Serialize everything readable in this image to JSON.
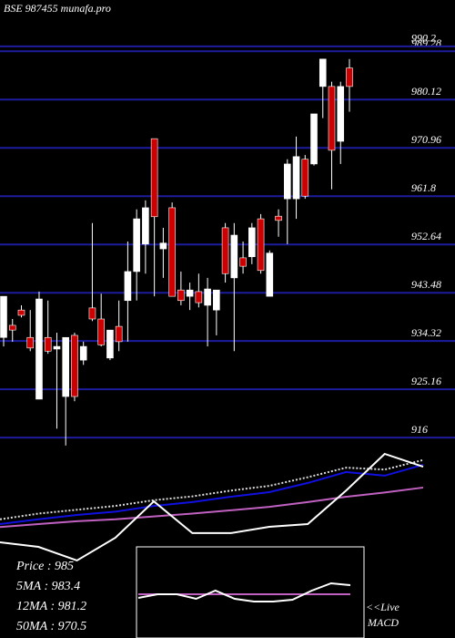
{
  "chart_data": {
    "type": "candlestick",
    "title": "BSE 987455 munafa.pro",
    "ylim": [
      914.3,
      999
    ],
    "yticks": [
      916,
      925.16,
      934.32,
      943.48,
      952.64,
      961.8,
      970.96,
      980.12,
      989.28,
      990.2
    ],
    "grid": true,
    "up_color": "#ffffff",
    "down_color": "#cc0000",
    "grid_color": "#1c1c9c",
    "open": [
      935.0,
      937.3,
      940.2,
      935.0,
      923.3,
      935.0,
      932.8,
      923.8,
      935.4,
      930.7,
      940.6,
      938.5,
      931.1,
      937.1,
      942.0,
      947.5,
      952.7,
      972.7,
      951.8,
      959.6,
      944.0,
      942.8,
      943.7,
      941.1,
      940.2,
      955.8,
      946.3,
      950.1,
      950.3,
      957.5,
      942.8,
      958.0,
      961.3,
      961.3,
      968.8,
      967.9,
      982.6,
      982.6,
      972.2,
      986.1
    ],
    "high": [
      942.8,
      938.5,
      941.1,
      940.2,
      943.7,
      942.0,
      935.9,
      935.0,
      935.9,
      934.2,
      956.7,
      943.3,
      936.4,
      942.0,
      953.2,
      959.3,
      961.0,
      972.7,
      955.8,
      960.6,
      947.5,
      945.4,
      947.1,
      946.3,
      944.0,
      956.7,
      956.7,
      953.2,
      956.7,
      958.4,
      951.5,
      959.3,
      968.8,
      973.1,
      969.6,
      977.4,
      987.8,
      983.5,
      983.5,
      987.8
    ],
    "low": [
      933.3,
      934.2,
      938.8,
      932.4,
      923.3,
      931.9,
      917.7,
      914.5,
      922.9,
      929.8,
      938.1,
      933.3,
      930.7,
      932.4,
      934.2,
      942.0,
      947.1,
      942.8,
      946.3,
      942.8,
      941.1,
      940.2,
      940.7,
      933.3,
      935.4,
      945.4,
      932.4,
      947.1,
      948.9,
      947.1,
      942.8,
      954.1,
      952.7,
      957.5,
      961.3,
      967.6,
      976.6,
      963.1,
      967.9,
      977.8
    ],
    "close": [
      942.8,
      936.4,
      939.2,
      933.0,
      942.3,
      932.4,
      933.3,
      935.0,
      923.8,
      933.3,
      938.5,
      933.6,
      936.4,
      934.2,
      947.5,
      957.5,
      959.6,
      957.9,
      952.9,
      942.8,
      942.0,
      944.0,
      941.6,
      944.2,
      944.0,
      947.1,
      954.4,
      948.5,
      955.8,
      947.7,
      951.0,
      957.2,
      967.9,
      969.3,
      961.8,
      977.4,
      987.8,
      970.5,
      982.6,
      982.6
    ],
    "info_lines": [
      "Price   : 985",
      "5MA : 983.4",
      "12MA : 981.2",
      "50MA : 970.5"
    ],
    "live_label": "<<Live",
    "macd_label": "MACD",
    "indicators": {
      "ylim": [
        0,
        100
      ],
      "series": [
        {
          "color": "#1010e0",
          "values": [
            59.5,
            62,
            64.3,
            66,
            69,
            71,
            73.8,
            76.2,
            81,
            86.7,
            84.8,
            90.5
          ]
        },
        {
          "color": "#dddddd",
          "values": [
            62,
            65,
            67,
            69,
            72,
            74,
            77,
            79.5,
            84,
            89,
            88,
            93
          ]
        },
        {
          "color": "#c060c0",
          "values": [
            58,
            59.5,
            61,
            62,
            63.5,
            65,
            66.7,
            68.5,
            71,
            73.8,
            76,
            78.6
          ]
        },
        {
          "color": "#ffffff",
          "values": [
            50,
            47.6,
            40.5,
            52.4,
            71.4,
            54.8,
            54.8,
            58.1,
            59.5,
            77.1,
            96.2,
            89.5
          ]
        }
      ]
    },
    "macd": {
      "ylim": [
        0,
        100
      ],
      "series": [
        {
          "color": "#c060c0",
          "values": [
            48,
            48,
            48,
            48,
            48,
            48,
            48,
            48,
            48,
            48,
            48,
            48
          ]
        },
        {
          "color": "#ffffff",
          "values": [
            44,
            48,
            48,
            43,
            52,
            43,
            40,
            40,
            42,
            52,
            60,
            58
          ]
        }
      ]
    }
  }
}
